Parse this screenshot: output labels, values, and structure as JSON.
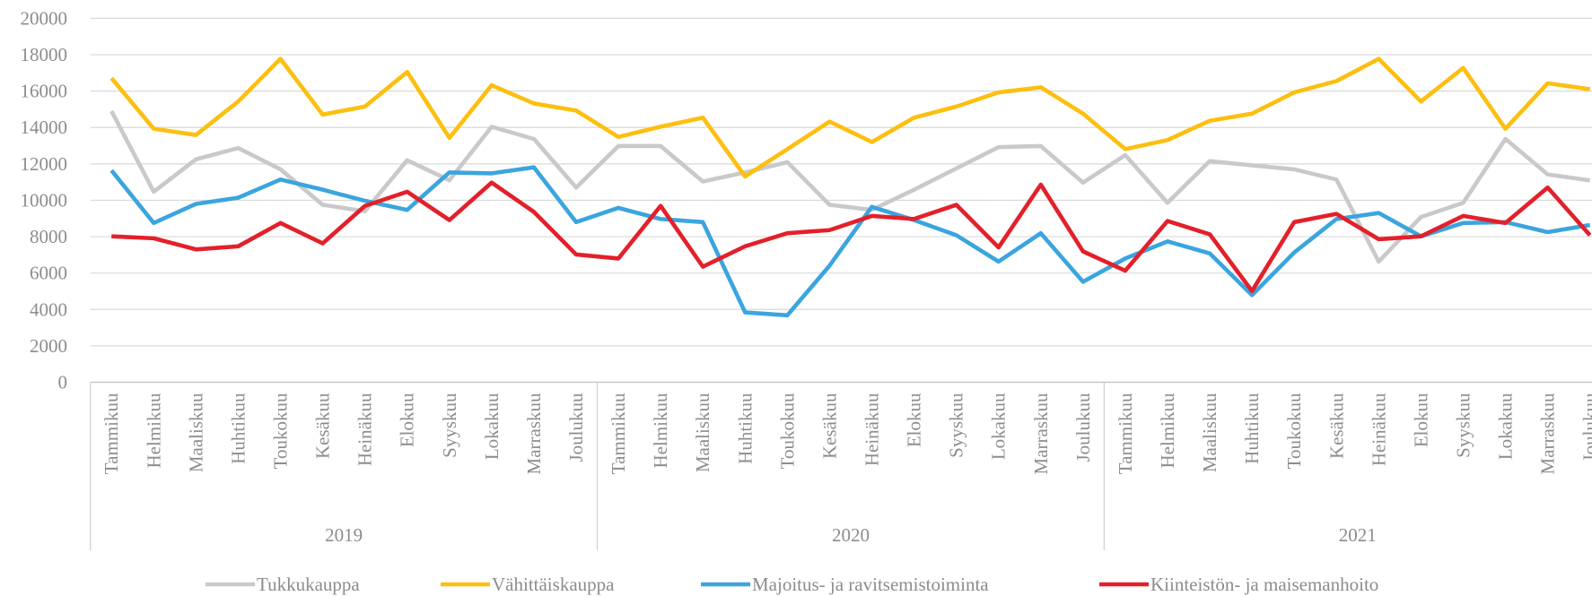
{
  "chart_data": {
    "type": "line",
    "categories": [
      "Tammikuu",
      "Helmikuu",
      "Maaliskuu",
      "Huhtikuu",
      "Toukokuu",
      "Kesäkuu",
      "Heinäkuu",
      "Elokuu",
      "Syyskuu",
      "Lokakuu",
      "Marraskuu",
      "Joulukuu",
      "Tammikuu",
      "Helmikuu",
      "Maaliskuu",
      "Huhtikuu",
      "Toukokuu",
      "Kesäkuu",
      "Heinäkuu",
      "Elokuu",
      "Syyskuu",
      "Lokakuu",
      "Marraskuu",
      "Joulukuu",
      "Tammikuu",
      "Helmikuu",
      "Maaliskuu",
      "Huhtikuu",
      "Toukokuu",
      "Kesäkuu",
      "Heinäkuu",
      "Elokuu",
      "Syyskuu",
      "Lokakuu",
      "Marraskuu",
      "Joulukuu"
    ],
    "category_groups": [
      "2019",
      "2020",
      "2021"
    ],
    "series": [
      {
        "name": "Tukkukauppa",
        "color": "#c9c9cc",
        "values": [
          14900,
          10470,
          12250,
          12870,
          11700,
          9750,
          9400,
          12200,
          11100,
          14040,
          13370,
          10700,
          12980,
          12980,
          11030,
          11530,
          12090,
          9750,
          9470,
          10580,
          11750,
          12920,
          12980,
          10970,
          12480,
          9860,
          12150,
          11920,
          11700,
          11140,
          6630,
          9080,
          9860,
          13370,
          11420,
          11090
        ]
      },
      {
        "name": "Vähittäiskauppa",
        "color": "#fdbf0f",
        "values": [
          16710,
          13930,
          13590,
          15430,
          17770,
          14710,
          15150,
          17050,
          13430,
          16320,
          15320,
          14930,
          13480,
          14040,
          14540,
          11310,
          12810,
          14320,
          13200,
          14540,
          15150,
          15930,
          16210,
          14760,
          12810,
          13310,
          14370,
          14760,
          15930,
          16550,
          17770,
          15430,
          17270,
          13930,
          16430,
          16100
        ]
      },
      {
        "name": "Majoitus- ja ravitsemistoiminta",
        "color": "#3aa5de",
        "values": [
          11640,
          8750,
          9800,
          10140,
          11140,
          10580,
          9970,
          9470,
          11530,
          11480,
          11810,
          8800,
          9580,
          8970,
          8800,
          3840,
          3680,
          6410,
          9640,
          8910,
          8080,
          6630,
          8190,
          5520,
          6800,
          7740,
          7080,
          4790,
          7130,
          8970,
          9300,
          8020,
          8750,
          8800,
          8250,
          8640
        ]
      },
      {
        "name": "Kiinteistön- ja maisemanhoito",
        "color": "#e3202a",
        "values": [
          8020,
          7910,
          7300,
          7470,
          8750,
          7630,
          9690,
          10470,
          8910,
          10970,
          9360,
          7020,
          6800,
          9690,
          6350,
          7470,
          8190,
          8360,
          9140,
          8970,
          9750,
          7410,
          10860,
          7190,
          6130,
          8860,
          8130,
          5010,
          8800,
          9250,
          7860,
          8020,
          9140,
          8750,
          10700,
          8080
        ]
      }
    ],
    "ylim": [
      0,
      20000
    ],
    "yticks": [
      0,
      2000,
      4000,
      6000,
      8000,
      10000,
      12000,
      14000,
      16000,
      18000,
      20000
    ],
    "grid": true,
    "legend": "bottom"
  }
}
